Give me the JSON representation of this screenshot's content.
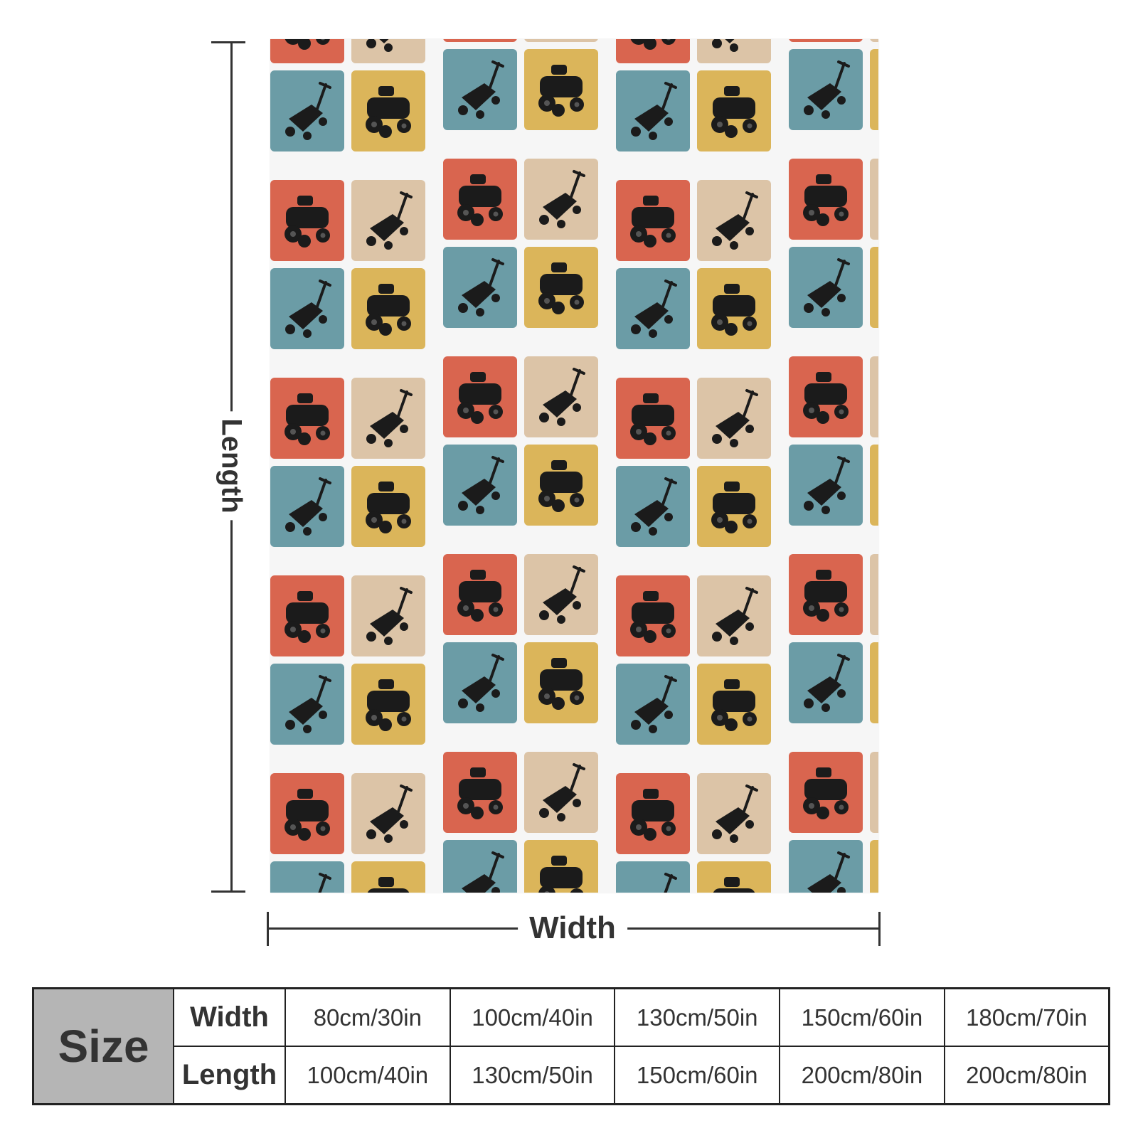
{
  "diagram": {
    "length_label": "Length",
    "width_label": "Width"
  },
  "pattern": {
    "icons": [
      "riding-mower-icon",
      "push-mower-icon"
    ],
    "colors": {
      "red": "#d9654f",
      "tan": "#dcc4a7",
      "teal": "#6b9ca6",
      "mustard": "#dbb55a",
      "silhouette": "#1b1b1b"
    }
  },
  "size_table": {
    "size_label": "Size",
    "width_label": "Width",
    "length_label": "Length",
    "widths": [
      "80cm/30in",
      "100cm/40in",
      "130cm/50in",
      "150cm/60in",
      "180cm/70in"
    ],
    "lengths": [
      "100cm/40in",
      "130cm/50in",
      "150cm/60in",
      "200cm/80in",
      "200cm/80in"
    ]
  }
}
